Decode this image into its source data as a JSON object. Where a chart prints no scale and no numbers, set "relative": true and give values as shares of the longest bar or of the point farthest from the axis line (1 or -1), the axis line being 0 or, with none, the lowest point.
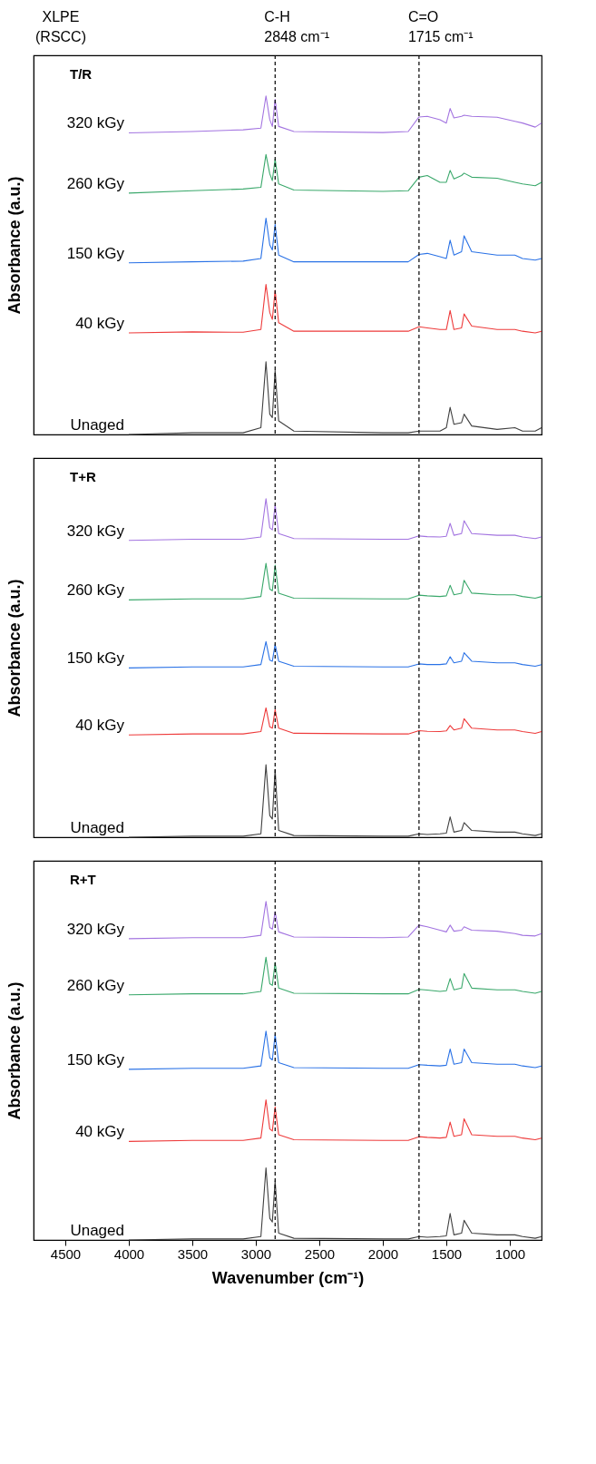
{
  "chart_data": [
    {
      "type": "line",
      "title": "T/R",
      "ylabel": "Absorbance (a.u.)",
      "relative": true,
      "tick_labels": false,
      "grid": false,
      "legend": false,
      "annotations": [
        "XLPE\n(RSCC)"
      ],
      "xlim": [
        4750,
        750
      ],
      "x": [
        4000,
        3500,
        3100,
        2960,
        2920,
        2890,
        2870,
        2848,
        2820,
        2700,
        2000,
        1800,
        1715,
        1650,
        1550,
        1500,
        1470,
        1440,
        1380,
        1360,
        1300,
        1100,
        960,
        900,
        800,
        750
      ],
      "ref_lines": [
        {
          "axis": "x",
          "value": 2848,
          "label": "C-H\n2848 cm⁻¹",
          "line_style": "dashed",
          "color": "#000000"
        },
        {
          "axis": "x",
          "value": 1715,
          "label": "C=O\n1715 cm⁻¹",
          "line_style": "dashed",
          "color": "#000000"
        }
      ],
      "series": [
        {
          "name": "Unaged",
          "color": "#404040",
          "values": [
            0,
            0.005,
            0.005,
            0.02,
            0.215,
            0.06,
            0.05,
            0.19,
            0.04,
            0.01,
            0.005,
            0.005,
            0.01,
            0.01,
            0.01,
            0.02,
            0.08,
            0.03,
            0.035,
            0.06,
            0.025,
            0.015,
            0.02,
            0.01,
            0.01,
            0.02
          ]
        },
        {
          "name": "40 kGy",
          "color": "#ee3b3b",
          "values": [
            0.3,
            0.303,
            0.302,
            0.31,
            0.443,
            0.36,
            0.34,
            0.426,
            0.33,
            0.305,
            0.305,
            0.305,
            0.318,
            0.315,
            0.31,
            0.31,
            0.366,
            0.31,
            0.315,
            0.356,
            0.32,
            0.31,
            0.31,
            0.305,
            0.3,
            0.305
          ]
        },
        {
          "name": "150 kGy",
          "color": "#2a72e6",
          "values": [
            0.507,
            0.51,
            0.512,
            0.52,
            0.639,
            0.56,
            0.545,
            0.621,
            0.53,
            0.51,
            0.51,
            0.51,
            0.532,
            0.535,
            0.525,
            0.52,
            0.574,
            0.53,
            0.54,
            0.587,
            0.54,
            0.53,
            0.53,
            0.52,
            0.515,
            0.52
          ]
        },
        {
          "name": "260 kGy",
          "color": "#3aa86b",
          "values": [
            0.713,
            0.72,
            0.725,
            0.73,
            0.827,
            0.77,
            0.75,
            0.814,
            0.74,
            0.722,
            0.718,
            0.72,
            0.76,
            0.765,
            0.745,
            0.745,
            0.78,
            0.755,
            0.765,
            0.772,
            0.76,
            0.757,
            0.745,
            0.74,
            0.735,
            0.745
          ]
        },
        {
          "name": "320 kGy",
          "color": "#a374e0",
          "values": [
            0.891,
            0.895,
            0.9,
            0.905,
            1.0,
            0.93,
            0.91,
            0.99,
            0.91,
            0.895,
            0.892,
            0.895,
            0.938,
            0.94,
            0.93,
            0.92,
            0.963,
            0.935,
            0.94,
            0.943,
            0.94,
            0.937,
            0.925,
            0.92,
            0.908,
            0.92
          ]
        }
      ]
    },
    {
      "type": "line",
      "title": "T+R",
      "ylabel": "Absorbance (a.u.)",
      "relative": true,
      "tick_labels": false,
      "grid": false,
      "legend": false,
      "xlim": [
        4750,
        750
      ],
      "x": [
        4000,
        3500,
        3100,
        2960,
        2920,
        2890,
        2870,
        2848,
        2820,
        2700,
        2000,
        1800,
        1715,
        1650,
        1550,
        1500,
        1470,
        1440,
        1380,
        1360,
        1300,
        1100,
        960,
        900,
        800,
        750
      ],
      "ref_lines": [
        {
          "axis": "x",
          "value": 2848,
          "line_style": "dashed",
          "color": "#000000"
        },
        {
          "axis": "x",
          "value": 1715,
          "line_style": "dashed",
          "color": "#000000"
        }
      ],
      "series": [
        {
          "name": "Unaged",
          "color": "#404040",
          "values": [
            0,
            0.003,
            0.003,
            0.01,
            0.214,
            0.064,
            0.054,
            0.2,
            0.02,
            0.005,
            0.003,
            0.003,
            0.01,
            0.008,
            0.01,
            0.012,
            0.06,
            0.015,
            0.02,
            0.043,
            0.02,
            0.015,
            0.015,
            0.01,
            0.005,
            0.01
          ]
        },
        {
          "name": "40 kGy",
          "color": "#ee3b3b",
          "values": [
            0.302,
            0.305,
            0.305,
            0.312,
            0.382,
            0.326,
            0.322,
            0.377,
            0.322,
            0.307,
            0.305,
            0.305,
            0.315,
            0.313,
            0.312,
            0.314,
            0.33,
            0.317,
            0.322,
            0.35,
            0.322,
            0.317,
            0.317,
            0.312,
            0.307,
            0.312
          ]
        },
        {
          "name": "150 kGy",
          "color": "#2a72e6",
          "values": [
            0.5,
            0.503,
            0.503,
            0.51,
            0.578,
            0.523,
            0.52,
            0.57,
            0.52,
            0.505,
            0.503,
            0.503,
            0.512,
            0.51,
            0.51,
            0.512,
            0.533,
            0.515,
            0.52,
            0.545,
            0.52,
            0.515,
            0.515,
            0.51,
            0.505,
            0.51
          ]
        },
        {
          "name": "260 kGy",
          "color": "#3aa86b",
          "values": [
            0.701,
            0.704,
            0.704,
            0.711,
            0.809,
            0.733,
            0.728,
            0.804,
            0.721,
            0.706,
            0.704,
            0.704,
            0.715,
            0.713,
            0.711,
            0.713,
            0.744,
            0.716,
            0.721,
            0.759,
            0.721,
            0.716,
            0.716,
            0.711,
            0.706,
            0.711
          ]
        },
        {
          "name": "320 kGy",
          "color": "#a374e0",
          "values": [
            0.877,
            0.88,
            0.88,
            0.887,
            1.0,
            0.914,
            0.908,
            0.982,
            0.897,
            0.882,
            0.88,
            0.88,
            0.89,
            0.888,
            0.887,
            0.889,
            0.927,
            0.892,
            0.897,
            0.935,
            0.897,
            0.892,
            0.892,
            0.887,
            0.882,
            0.887
          ]
        }
      ]
    },
    {
      "type": "line",
      "title": "R+T",
      "ylabel": "Absorbance (a.u.)",
      "xlabel": "Wavenumber (cm⁻¹)",
      "relative": true,
      "tick_labels": "x",
      "grid": false,
      "legend": false,
      "xlim": [
        4750,
        750
      ],
      "xticks": [
        4500,
        4000,
        3500,
        3000,
        2500,
        2000,
        1500,
        1000
      ],
      "x": [
        4000,
        3500,
        3100,
        2960,
        2920,
        2890,
        2870,
        2848,
        2820,
        2700,
        2000,
        1800,
        1715,
        1650,
        1550,
        1500,
        1470,
        1440,
        1380,
        1360,
        1300,
        1100,
        960,
        900,
        800,
        750
      ],
      "ref_lines": [
        {
          "axis": "x",
          "value": 2848,
          "line_style": "dashed",
          "color": "#000000"
        },
        {
          "axis": "x",
          "value": 1715,
          "line_style": "dashed",
          "color": "#000000"
        }
      ],
      "series": [
        {
          "name": "Unaged",
          "color": "#404040",
          "values": [
            0,
            0.003,
            0.003,
            0.01,
            0.213,
            0.064,
            0.053,
            0.175,
            0.02,
            0.005,
            0.003,
            0.003,
            0.01,
            0.008,
            0.01,
            0.012,
            0.078,
            0.015,
            0.02,
            0.058,
            0.02,
            0.015,
            0.015,
            0.01,
            0.005,
            0.01
          ]
        },
        {
          "name": "40 kGy",
          "color": "#ee3b3b",
          "values": [
            0.291,
            0.294,
            0.294,
            0.301,
            0.414,
            0.328,
            0.322,
            0.393,
            0.311,
            0.296,
            0.294,
            0.294,
            0.305,
            0.303,
            0.301,
            0.303,
            0.348,
            0.306,
            0.311,
            0.358,
            0.311,
            0.306,
            0.306,
            0.301,
            0.296,
            0.301
          ]
        },
        {
          "name": "150 kGy",
          "color": "#2a72e6",
          "values": [
            0.504,
            0.507,
            0.507,
            0.514,
            0.617,
            0.538,
            0.532,
            0.607,
            0.524,
            0.509,
            0.507,
            0.507,
            0.518,
            0.516,
            0.514,
            0.516,
            0.564,
            0.519,
            0.524,
            0.564,
            0.524,
            0.519,
            0.519,
            0.514,
            0.509,
            0.514
          ]
        },
        {
          "name": "260 kGy",
          "color": "#3aa86b",
          "values": [
            0.724,
            0.727,
            0.727,
            0.734,
            0.835,
            0.757,
            0.752,
            0.82,
            0.744,
            0.729,
            0.727,
            0.727,
            0.74,
            0.738,
            0.734,
            0.736,
            0.772,
            0.739,
            0.744,
            0.787,
            0.744,
            0.739,
            0.739,
            0.734,
            0.729,
            0.734
          ]
        },
        {
          "name": "320 kGy",
          "color": "#a374e0",
          "values": [
            0.89,
            0.893,
            0.893,
            0.9,
            1.0,
            0.923,
            0.918,
            0.97,
            0.91,
            0.895,
            0.893,
            0.895,
            0.93,
            0.925,
            0.915,
            0.91,
            0.93,
            0.912,
            0.915,
            0.925,
            0.915,
            0.912,
            0.905,
            0.9,
            0.898,
            0.905
          ]
        }
      ]
    }
  ]
}
